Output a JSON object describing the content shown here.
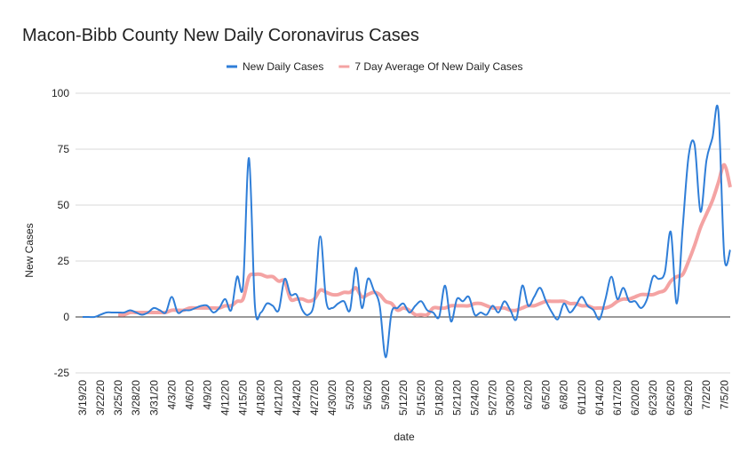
{
  "chart_data": {
    "type": "line",
    "title": "Macon-Bibb County New Daily Coronavirus Cases",
    "x_label": "date",
    "y_label": "New Cases",
    "categories": [
      "3/19/20",
      null,
      null,
      "3/22/20",
      null,
      null,
      "3/25/20",
      null,
      null,
      "3/28/20",
      null,
      null,
      "3/31/20",
      null,
      null,
      "4/3/20",
      null,
      null,
      "4/6/20",
      null,
      null,
      "4/9/20",
      null,
      null,
      "4/12/20",
      null,
      null,
      "4/15/20",
      null,
      null,
      "4/18/20",
      null,
      null,
      "4/21/20",
      null,
      null,
      "4/24/20",
      null,
      null,
      "4/27/20",
      null,
      null,
      "4/30/20",
      null,
      null,
      "5/3/20",
      null,
      null,
      "5/6/20",
      null,
      null,
      "5/9/20",
      null,
      null,
      "5/12/20",
      null,
      null,
      "5/15/20",
      null,
      null,
      "5/18/20",
      null,
      null,
      "5/21/20",
      null,
      null,
      "5/24/20",
      null,
      null,
      "5/27/20",
      null,
      null,
      "5/30/20",
      null,
      null,
      "6/2/20",
      null,
      null,
      "6/5/20",
      null,
      null,
      "6/8/20",
      null,
      null,
      "6/11/20",
      null,
      null,
      "6/14/20",
      null,
      null,
      "6/17/20",
      null,
      null,
      "6/20/20",
      null,
      null,
      "6/23/20",
      null,
      null,
      "6/26/20",
      null,
      null,
      "6/29/20",
      null,
      null,
      "7/2/20",
      null,
      null,
      "7/5/20",
      null
    ],
    "series": [
      {
        "name": "New Daily Cases",
        "color": "#2f7ed8",
        "width": 2,
        "values": [
          0,
          0,
          0,
          1,
          2,
          2,
          2,
          2,
          3,
          2,
          1,
          2,
          4,
          3,
          2,
          9,
          2,
          3,
          3,
          4,
          5,
          5,
          2,
          4,
          8,
          3,
          18,
          14,
          71,
          5,
          2,
          6,
          5,
          3,
          17,
          10,
          10,
          3,
          1,
          7,
          36,
          7,
          4,
          6,
          7,
          3,
          22,
          4,
          17,
          12,
          5,
          -18,
          2,
          4,
          6,
          2,
          5,
          7,
          3,
          2,
          0,
          14,
          -2,
          8,
          7,
          9,
          1,
          2,
          1,
          5,
          2,
          7,
          3,
          -1,
          14,
          5,
          9,
          13,
          7,
          2,
          -1,
          6,
          2,
          5,
          9,
          5,
          3,
          -1,
          8,
          18,
          8,
          13,
          7,
          7,
          4,
          8,
          18,
          17,
          20,
          38,
          6,
          40,
          72,
          77,
          47,
          70,
          80,
          92,
          27,
          30
        ]
      },
      {
        "name": "7 Day Average Of New Daily Cases",
        "color": "#f4a3a3",
        "width": 4,
        "values": [
          null,
          null,
          null,
          null,
          null,
          null,
          1,
          1,
          2,
          2,
          2,
          2,
          2,
          2,
          2,
          3,
          3,
          3,
          4,
          4,
          4,
          4,
          4,
          4,
          5,
          5,
          7,
          8,
          18,
          19,
          19,
          18,
          18,
          16,
          16,
          8,
          8,
          8,
          7,
          8,
          12,
          11,
          10,
          10,
          11,
          11,
          13,
          9,
          10,
          11,
          10,
          7,
          6,
          3,
          4,
          3,
          1,
          1,
          1,
          4,
          4,
          4,
          5,
          5,
          5,
          5,
          6,
          6,
          5,
          4,
          4,
          4,
          3,
          3,
          4,
          5,
          5,
          6,
          7,
          7,
          7,
          7,
          6,
          6,
          5,
          5,
          4,
          4,
          4,
          5,
          7,
          8,
          8,
          9,
          10,
          10,
          10,
          11,
          12,
          16,
          18,
          19,
          25,
          32,
          40,
          46,
          52,
          60,
          68,
          58
        ]
      }
    ],
    "ylim": [
      -25,
      100
    ],
    "yticks": [
      -25,
      0,
      25,
      50,
      75,
      100
    ],
    "grid": true,
    "legend": "top"
  }
}
